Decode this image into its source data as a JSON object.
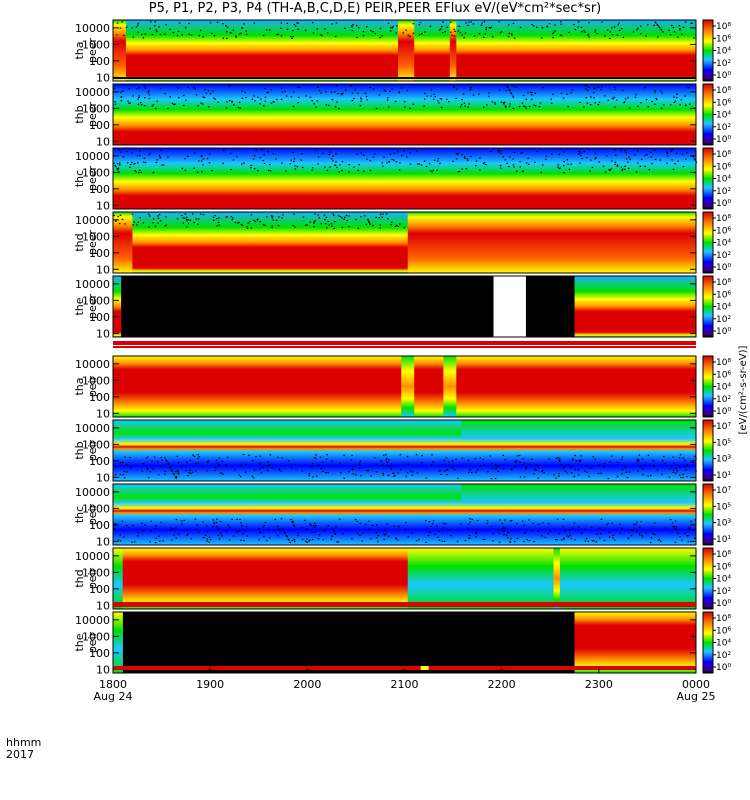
{
  "chart_data": {
    "type": "heatmap",
    "title": "P5, P1, P2, P3, P4 (TH-A,B,C,D,E) PEIR,PEER EFlux eV/(eV*cm²*sec*sr)",
    "x_label_line1": "hhmm",
    "x_label_line2": "2017",
    "x_ticks": [
      {
        "t": 0,
        "label": "1800",
        "date": "Aug 24"
      },
      {
        "t": 60,
        "label": "1900",
        "date": ""
      },
      {
        "t": 120,
        "label": "2000",
        "date": ""
      },
      {
        "t": 180,
        "label": "2100",
        "date": ""
      },
      {
        "t": 240,
        "label": "2200",
        "date": ""
      },
      {
        "t": 300,
        "label": "2300",
        "date": ""
      },
      {
        "t": 360,
        "label": "0000",
        "date": "Aug 25"
      }
    ],
    "xlim": [
      0,
      360
    ],
    "y_ticks": [
      "10",
      "100",
      "1000",
      "10000"
    ],
    "y_scale": "log",
    "ylim": [
      6,
      30000
    ],
    "colorbar_title": "[eV/(cm²-s-sr-eV)]",
    "colors": {
      "black": "#000000",
      "blue": "#0000ff",
      "cyan": "#19c8ff",
      "green": "#00e000",
      "yellow": "#ffff00",
      "orange": "#ff9000",
      "red": "#dd0000"
    },
    "panels": [
      {
        "probe": "tha",
        "species": "peer",
        "cbar": [
          "10⁰",
          "10²",
          "10⁴",
          "10⁶",
          "10⁸"
        ],
        "pattern": "electron-tha"
      },
      {
        "probe": "thb",
        "species": "peer",
        "cbar": [
          "10⁰",
          "10²",
          "10⁴",
          "10⁶",
          "10⁸"
        ],
        "pattern": "electron-steady"
      },
      {
        "probe": "thc",
        "species": "peer",
        "cbar": [
          "10⁰",
          "10²",
          "10⁴",
          "10⁶",
          "10⁸"
        ],
        "pattern": "electron-steady"
      },
      {
        "probe": "thd",
        "species": "peer",
        "cbar": [
          "10⁰",
          "10²",
          "10⁴",
          "10⁶",
          "10⁸"
        ],
        "pattern": "electron-thd"
      },
      {
        "probe": "the",
        "species": "peer",
        "cbar": [
          "10⁰",
          "10²",
          "10⁴",
          "10⁶",
          "10⁸"
        ],
        "pattern": "electron-the",
        "no_data": [
          [
            5,
            235
          ],
          [
            235,
            255,
            "white"
          ],
          [
            255,
            285
          ]
        ]
      },
      {
        "probe": "tha",
        "species": "peir",
        "cbar": [
          "10⁰",
          "10²",
          "10⁴",
          "10⁶",
          "10⁸"
        ],
        "pattern": "ion-tha"
      },
      {
        "probe": "thb",
        "species": "peir",
        "cbar": [
          "10¹",
          "10³",
          "10⁵",
          "10⁷"
        ],
        "pattern": "ion-steady"
      },
      {
        "probe": "thc",
        "species": "peir",
        "cbar": [
          "10¹",
          "10³",
          "10⁵",
          "10⁷"
        ],
        "pattern": "ion-steady"
      },
      {
        "probe": "thd",
        "species": "peir",
        "cbar": [
          "10⁰",
          "10²",
          "10⁴",
          "10⁶",
          "10⁸"
        ],
        "pattern": "ion-thd"
      },
      {
        "probe": "the",
        "species": "peir",
        "cbar": [
          "10⁰",
          "10²",
          "10⁴",
          "10⁶",
          "10⁸"
        ],
        "pattern": "ion-the",
        "no_data": [
          [
            6,
            285
          ]
        ]
      }
    ]
  }
}
